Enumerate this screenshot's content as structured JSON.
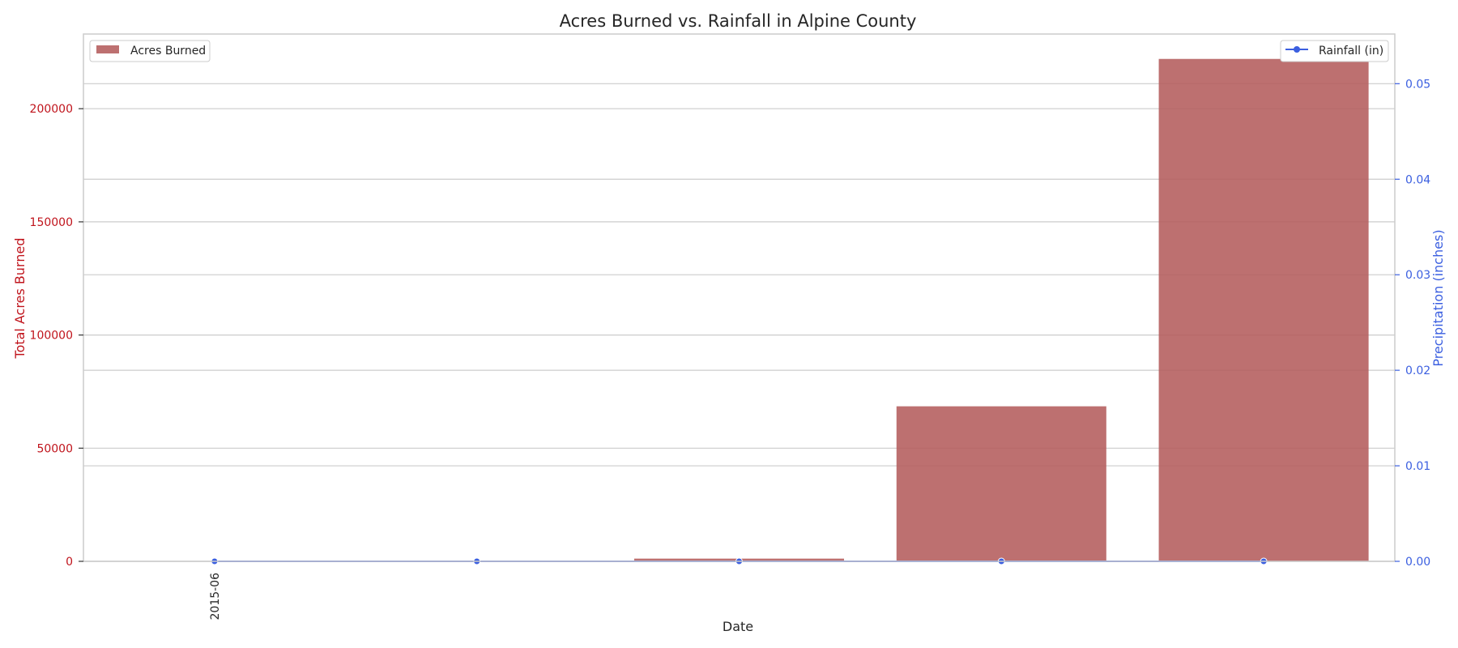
{
  "chart_data": {
    "type": "bar",
    "title": "Acres Burned vs. Rainfall in Alpine County",
    "xlabel": "Date",
    "x_tick_labels": [
      "2015-06"
    ],
    "categories": [
      "2015-06",
      "",
      "",
      "",
      ""
    ],
    "series": [
      {
        "name": "Acres Burned",
        "type": "bar",
        "axis": "left",
        "color": "#b45c5c",
        "values": [
          0,
          0,
          1200,
          68500,
          222000
        ]
      },
      {
        "name": "Rainfall (in)",
        "type": "line",
        "axis": "right",
        "color": "#3b5fe0",
        "values": [
          0,
          0,
          0,
          0,
          0
        ]
      }
    ],
    "y_left": {
      "label": "Total Acres Burned",
      "range": [
        0,
        233000
      ],
      "ticks": [
        0,
        50000,
        100000,
        150000,
        200000
      ],
      "color": "#c0141c"
    },
    "y_right": {
      "label": "Precipitation (inches)",
      "range": [
        0,
        0.0552
      ],
      "ticks": [
        0.0,
        0.01,
        0.02,
        0.03,
        0.04,
        0.05
      ],
      "tick_labels": [
        "0.00",
        "0.01",
        "0.02",
        "0.03",
        "0.04",
        "0.05"
      ],
      "color": "#3b5fe0"
    },
    "grid": true,
    "legend": {
      "left": "top-left",
      "right": "top-right"
    }
  }
}
